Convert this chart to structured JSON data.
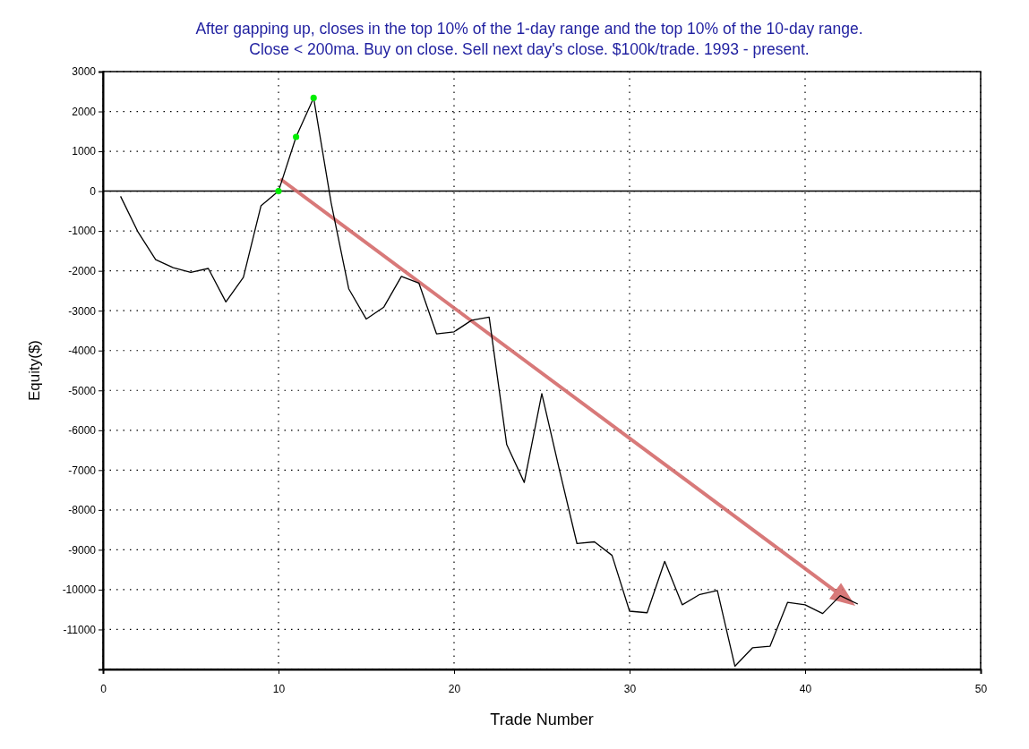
{
  "chart_data": {
    "type": "line",
    "title": "After gapping up, closes in the top 10% of the 1-day range and the top 10% of the 10-day range.\nClose < 200ma. Buy on close. Sell next day's close. $100k/trade. 1993 - present.",
    "xlabel": "Trade Number",
    "ylabel": "Equity($)",
    "xlim": [
      0,
      50
    ],
    "xticks": [
      0,
      10,
      20,
      30,
      40,
      50
    ],
    "ylim": [
      -12000,
      3000
    ],
    "yticks": [
      3000,
      2000,
      1000,
      0,
      -1000,
      -2000,
      -3000,
      -4000,
      -5000,
      -6000,
      -7000,
      -8000,
      -9000,
      -10000,
      -11000,
      {
        "value": -12000,
        "label": null
      }
    ],
    "grid": true,
    "ref_lines": [
      {
        "axis": "y",
        "value": 0,
        "color": "#000000",
        "line_style": "solid"
      }
    ],
    "series": [
      {
        "color": "#000000",
        "marker": "none",
        "line_style": "solid",
        "x": [
          1,
          2,
          3,
          4,
          5,
          6,
          7,
          8,
          9,
          10,
          11,
          12,
          13,
          14,
          15,
          16,
          17,
          18,
          19,
          20,
          21,
          22,
          23,
          24,
          25,
          26,
          27,
          28,
          29,
          30,
          31,
          32,
          33,
          34,
          35,
          36,
          37,
          38,
          39,
          40,
          41,
          42,
          43
        ],
        "values": [
          -130,
          -1030,
          -1720,
          -1920,
          -2040,
          -1940,
          -2780,
          -2160,
          -370,
          0,
          1360,
          2340,
          -300,
          -2450,
          -3210,
          -2910,
          -2140,
          -2310,
          -3580,
          -3530,
          -3240,
          -3160,
          -6360,
          -7310,
          -5080,
          -6990,
          -8840,
          -8800,
          -9140,
          -10540,
          -10580,
          -9290,
          -10380,
          -10120,
          -10020,
          -11920,
          -11460,
          -11420,
          -10320,
          -10380,
          -10600,
          -10150,
          -10360
        ]
      },
      {
        "type": "scatter",
        "color": "#00ee00",
        "marker": "circle",
        "x": [
          10,
          11,
          12
        ],
        "values": [
          0,
          1360,
          2340
        ]
      }
    ]
  }
}
